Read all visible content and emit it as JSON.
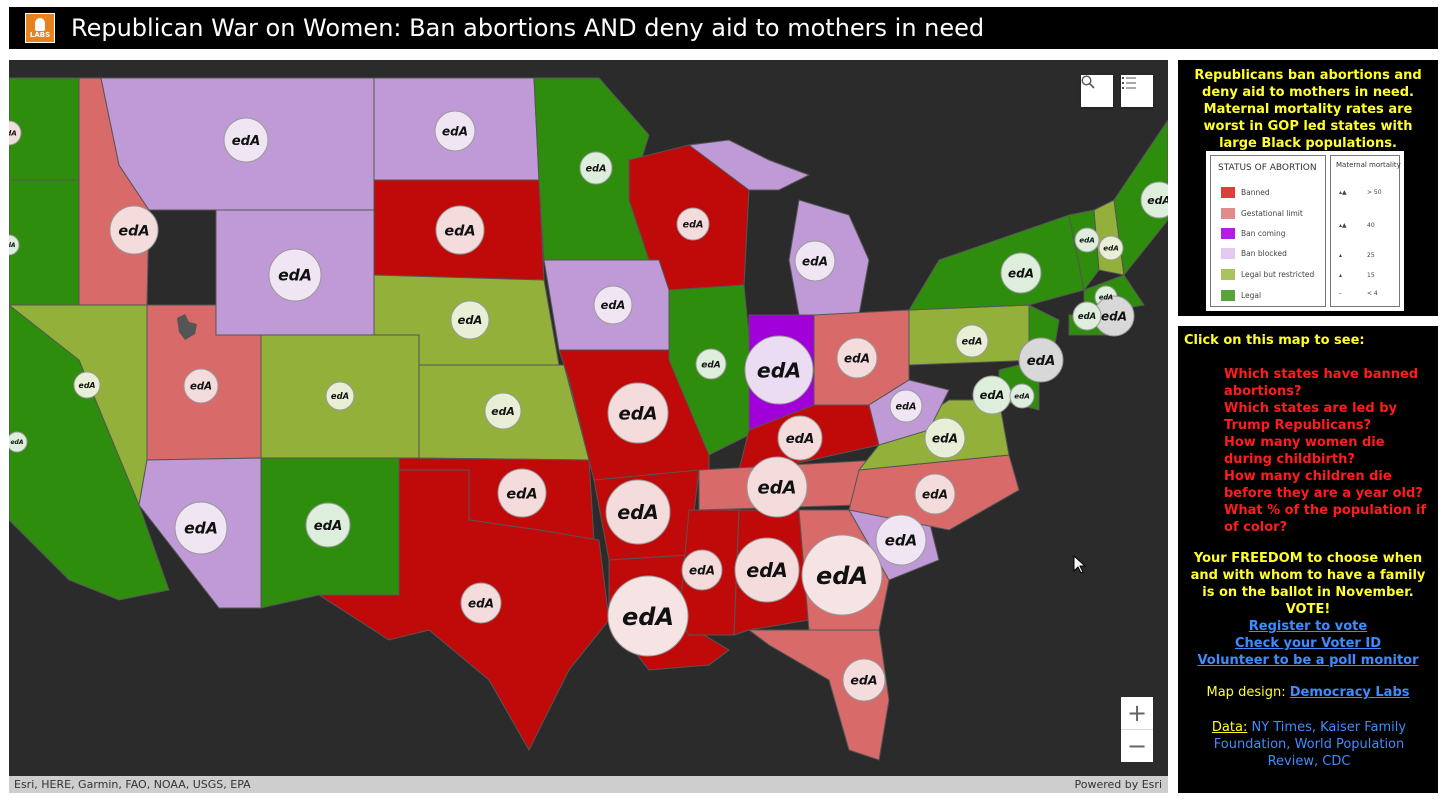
{
  "header": {
    "logo_text": "LABS",
    "title": "Republican War on Women: Ban abortions AND deny aid to mothers in need"
  },
  "colors": {
    "banned": "#c00a0a",
    "gestational_limit": "#d96a6a",
    "ban_coming": "#a100d8",
    "ban_blocked": "#bf9ad6",
    "legal_but_restricted": "#93b03b",
    "legal": "#2f8d0e",
    "water": "#2b2b2b",
    "accent_yellow": "#ffff2e",
    "link_blue": "#3f8cff",
    "alert_red": "#ff1c1c"
  },
  "map": {
    "controls": {
      "search_icon": "search-icon",
      "layer_list_icon": "layer-list-icon",
      "zoom_in": "+",
      "zoom_out": "−"
    },
    "attribution_left": "Esri, HERE, Garmin, FAO, NOAA, USGS, EPA",
    "attribution_right": "Powered by Esri",
    "symbol_label": "edA"
  },
  "info_panel": {
    "intro": "Republicans ban abortions and deny aid to mothers in need. Maternal mortality rates are worst in GOP led states with large Black populations.",
    "legend": {
      "status_title": "STATUS OF ABORTION",
      "status_items": [
        {
          "label": "Banned",
          "color": "#e03c3c"
        },
        {
          "label": "Gestational limit",
          "color": "#e38a8a"
        },
        {
          "label": "Ban coming",
          "color": "#b31ee6"
        },
        {
          "label": "Ban blocked",
          "color": "#e3c8ef"
        },
        {
          "label": "Legal but restricted",
          "color": "#a9c45e"
        },
        {
          "label": "Legal",
          "color": "#5aa23c"
        }
      ],
      "mortality_title": "Maternal mortality",
      "mortality_items": [
        "> 50",
        "40",
        "25",
        "15",
        "< 4"
      ]
    }
  },
  "side_panel": {
    "heading": "Click on this map to see:",
    "questions": [
      "Which states have banned abortions?",
      "Which states are led by Trump Republicans?",
      "How many women die during childbirth?",
      "How many children die before they are a year old?",
      "What % of the population if of color?"
    ],
    "freedom": "Your FREEDOM to choose when and with whom to have a family is on the ballot in November. VOTE!",
    "links": [
      "Register to vote",
      "Check your Voter ID",
      "Volunteer to be a poll monitor"
    ],
    "design_label": "Map design:",
    "design_link": "Democracy Labs",
    "data_label": "Data:",
    "data_sources": "NY Times, Kaiser Family Foundation, World Population Review, CDC"
  }
}
